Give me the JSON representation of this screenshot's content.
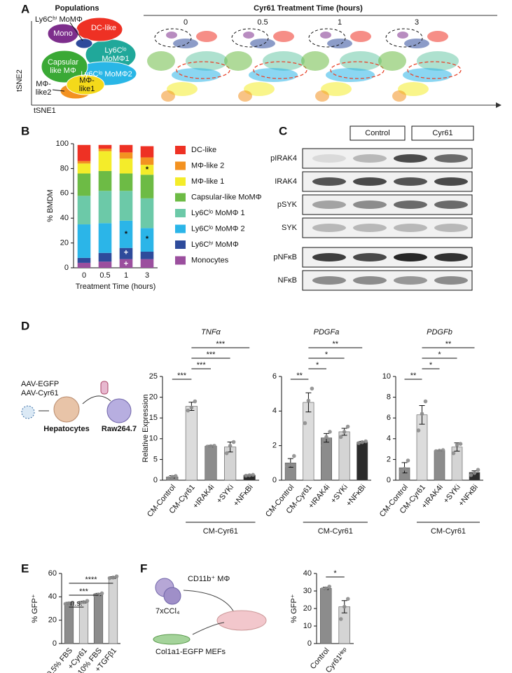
{
  "panel_labels": [
    "A",
    "B",
    "C",
    "D",
    "E",
    "F"
  ],
  "tsne": {
    "title": "Populations",
    "callout": "Ly6Cʰⁱ MoMΦ",
    "populations": [
      {
        "lines": [
          "Mono"
        ]
      },
      {
        "lines": [
          "DC-like"
        ]
      },
      {
        "lines": [
          "Ly6Cˡᵒ",
          "MoMΦ1"
        ]
      },
      {
        "lines": [
          "Capsular",
          "like MΦ"
        ]
      },
      {
        "lines": [
          "Ly6Cˡᵒ MoMΦ2"
        ]
      },
      {
        "lines": [
          "MΦ-",
          "like1"
        ]
      },
      {
        "lines": [
          "MΦ-",
          "like2"
        ]
      }
    ],
    "y_axis": "tSNE2",
    "x_axis": "tSNE1",
    "treatment_title": "Cyr61 Treatment Time (hours)",
    "times": [
      "0",
      "0.5",
      "1",
      "3"
    ]
  },
  "blot": {
    "groups": [
      "Control",
      "Cyr61"
    ],
    "rows": [
      "pIRAK4",
      "IRAK4",
      "pSYK",
      "SYK",
      "pNFκB",
      "NFκB"
    ]
  },
  "schematic_d": {
    "vectors": [
      "AAV-EGFP",
      "AAV-Cyr61"
    ],
    "cells": [
      "Hepatocytes",
      "Raw264.7"
    ]
  },
  "schematic_f": {
    "labels": [
      "CD11b⁺ MΦ",
      "7xCCl₄",
      "Col1a1-EGFP MEFs"
    ]
  },
  "chart_data": [
    {
      "type": "stacked_bar",
      "ylabel": "% BMDM",
      "xlabel": "Treatment Time (hours)",
      "categories": [
        "0",
        "0.5",
        "1",
        "3"
      ],
      "ylim": [
        0,
        100
      ],
      "yticks": [
        0,
        20,
        40,
        60,
        80,
        100
      ],
      "series": [
        {
          "name": "Monocytes",
          "color": "#9b4f9e",
          "values": [
            4,
            5,
            7,
            7
          ]
        },
        {
          "name": "Ly6Cʰⁱ MoMΦ",
          "color": "#2e4b9b",
          "values": [
            4,
            7,
            9,
            6
          ]
        },
        {
          "name": "Ly6Cˡᵒ MoMΦ 2",
          "color": "#2bb5e8",
          "values": [
            27,
            24,
            22,
            19
          ]
        },
        {
          "name": "Ly6Cˡᵒ MoMΦ 1",
          "color": "#6cc9a8",
          "values": [
            23,
            26,
            24,
            24
          ]
        },
        {
          "name": "Capsular-like MoMΦ",
          "color": "#6dbb45",
          "values": [
            18,
            16,
            14,
            19
          ]
        },
        {
          "name": "MΦ-like 1",
          "color": "#f4ec2a",
          "values": [
            8,
            16,
            12,
            8
          ]
        },
        {
          "name": "MΦ-like 2",
          "color": "#f39221",
          "values": [
            2,
            2,
            5,
            6
          ]
        },
        {
          "name": "DC-like",
          "color": "#ee3124",
          "values": [
            13,
            3,
            6,
            9
          ]
        }
      ],
      "annotations": [
        {
          "category": "1",
          "y": 27,
          "text": "*"
        },
        {
          "category": "1",
          "y": 12,
          "text": "+"
        },
        {
          "category": "1",
          "y": 3,
          "text": "+"
        },
        {
          "category": "3",
          "y": 79,
          "text": "*"
        },
        {
          "category": "3",
          "y": 23,
          "text": "*"
        }
      ]
    },
    {
      "type": "bar",
      "title": "TNFα",
      "ylabel": "Relative Expression",
      "categories": [
        "CM-Control",
        "CM-Cyr61",
        "+IRAK4i",
        "+SYKi",
        "+NFκBi"
      ],
      "values": [
        0.8,
        17.8,
        8.2,
        8.0,
        1.2
      ],
      "errors": [
        0.3,
        1.0,
        0.2,
        1.2,
        0.1
      ],
      "points": [
        [
          0.5,
          0.8,
          1.0
        ],
        [
          16.8,
          17.5,
          19
        ],
        [
          8.1,
          8.2,
          8.3
        ],
        [
          6.5,
          8.3,
          9.2
        ],
        [
          1.1,
          1.2,
          1.3
        ]
      ],
      "colors": [
        "#8c8c8c",
        "#dcdcdc",
        "#8c8c8c",
        "#d4d4d4",
        "#2b2b2b"
      ],
      "ylim": [
        0,
        25
      ],
      "yticks": [
        0,
        5,
        10,
        15,
        20,
        25
      ],
      "significance": [
        {
          "between": [
            "CM-Control",
            "CM-Cyr61"
          ],
          "label": "***"
        },
        {
          "between": [
            "CM-Cyr61",
            "+IRAK4i"
          ],
          "label": "***"
        },
        {
          "between": [
            "CM-Cyr61",
            "+SYKi"
          ],
          "label": "***"
        },
        {
          "between": [
            "CM-Cyr61",
            "+NFκBi"
          ],
          "label": "***"
        }
      ],
      "group_label": {
        "text": "CM-Cyr61",
        "categories": [
          "CM-Cyr61",
          "+IRAK4i",
          "+SYKi",
          "+NFκBi"
        ]
      }
    },
    {
      "type": "bar",
      "title": "PDGFa",
      "categories": [
        "CM-Control",
        "CM-Cyr61",
        "+IRAK4i",
        "+SYKi",
        "+NFκBi"
      ],
      "values": [
        1.0,
        4.5,
        2.45,
        2.8,
        2.2
      ],
      "errors": [
        0.25,
        0.55,
        0.25,
        0.2,
        0.05
      ],
      "points": [
        [
          0.8,
          0.9,
          1.4
        ],
        [
          3.3,
          4.6,
          5.3
        ],
        [
          2.0,
          2.5,
          2.8
        ],
        [
          2.5,
          2.8,
          3.1
        ],
        [
          2.15,
          2.2,
          2.25
        ]
      ],
      "colors": [
        "#8c8c8c",
        "#dcdcdc",
        "#8c8c8c",
        "#d4d4d4",
        "#2b2b2b"
      ],
      "ylim": [
        0,
        6
      ],
      "yticks": [
        0,
        2,
        4,
        6
      ],
      "significance": [
        {
          "between": [
            "CM-Control",
            "CM-Cyr61"
          ],
          "label": "**"
        },
        {
          "between": [
            "CM-Cyr61",
            "+IRAK4i"
          ],
          "label": "*"
        },
        {
          "between": [
            "CM-Cyr61",
            "+SYKi"
          ],
          "label": "*"
        },
        {
          "between": [
            "CM-Cyr61",
            "+NFκBi"
          ],
          "label": "**"
        }
      ],
      "group_label": {
        "text": "CM-Cyr61",
        "categories": [
          "CM-Cyr61",
          "+IRAK4i",
          "+SYKi",
          "+NFκBi"
        ]
      }
    },
    {
      "type": "bar",
      "title": "PDGFb",
      "categories": [
        "CM-Control",
        "CM-Cyr61",
        "+IRAK4i",
        "+SYKi",
        "+NFκBi"
      ],
      "values": [
        1.2,
        6.3,
        2.85,
        3.2,
        0.75
      ],
      "errors": [
        0.5,
        0.9,
        0.05,
        0.4,
        0.15
      ],
      "points": [
        [
          0.8,
          1.1,
          1.9
        ],
        [
          4.8,
          6.4,
          7.6
        ],
        [
          2.8,
          2.85,
          2.9
        ],
        [
          2.6,
          3.4,
          3.5
        ],
        [
          0.5,
          0.7,
          1.0
        ]
      ],
      "colors": [
        "#8c8c8c",
        "#dcdcdc",
        "#8c8c8c",
        "#d4d4d4",
        "#2b2b2b"
      ],
      "ylim": [
        0,
        10
      ],
      "yticks": [
        0,
        2,
        4,
        6,
        8,
        10
      ],
      "significance": [
        {
          "between": [
            "CM-Control",
            "CM-Cyr61"
          ],
          "label": "**"
        },
        {
          "between": [
            "CM-Cyr61",
            "+IRAK4i"
          ],
          "label": "*"
        },
        {
          "between": [
            "CM-Cyr61",
            "+SYKi"
          ],
          "label": "*"
        },
        {
          "between": [
            "CM-Cyr61",
            "+NFκBi"
          ],
          "label": "**"
        }
      ],
      "group_label": {
        "text": "CM-Cyr61",
        "categories": [
          "CM-Cyr61",
          "+IRAK4i",
          "+SYKi",
          "+NFκBi"
        ]
      }
    },
    {
      "type": "bar",
      "ylabel": "% GFP⁺",
      "categories": [
        "0.5% FBS",
        "+Cyr61",
        "10% FBS",
        "+TGFβ1"
      ],
      "values": [
        34.5,
        35.5,
        42,
        56.5
      ],
      "errors": [
        0.8,
        0.8,
        1,
        0.8
      ],
      "points": [
        [
          34,
          34.5,
          35
        ],
        [
          35,
          35.5,
          36.5
        ],
        [
          41.5,
          42,
          43
        ],
        [
          56,
          56.5,
          57.5
        ]
      ],
      "colors": [
        "#8c8c8c",
        "#d4d4d4",
        "#8c8c8c",
        "#d4d4d4"
      ],
      "ylim": [
        0,
        60
      ],
      "yticks": [
        0,
        20,
        40,
        60
      ],
      "significance": [
        {
          "between": [
            "0.5% FBS",
            "+Cyr61"
          ],
          "label": "n.s."
        },
        {
          "between": [
            "0.5% FBS",
            "10% FBS"
          ],
          "label": "***"
        },
        {
          "between": [
            "0.5% FBS",
            "+TGFβ1"
          ],
          "label": "****"
        }
      ]
    },
    {
      "type": "bar",
      "ylabel": "% GFP⁺",
      "categories": [
        "Control",
        "Cyr61ᴴᵉᵖ"
      ],
      "values": [
        31.5,
        21
      ],
      "errors": [
        0.7,
        3.5
      ],
      "points": [
        [
          31,
          31.5,
          32.5
        ],
        [
          14,
          21,
          25.5
        ]
      ],
      "colors": [
        "#8c8c8c",
        "#d4d4d4"
      ],
      "ylim": [
        0,
        40
      ],
      "yticks": [
        0,
        10,
        20,
        30,
        40
      ],
      "significance": [
        {
          "between": [
            "Control",
            "Cyr61ᴴᵉᵖ"
          ],
          "label": "*"
        }
      ]
    }
  ]
}
